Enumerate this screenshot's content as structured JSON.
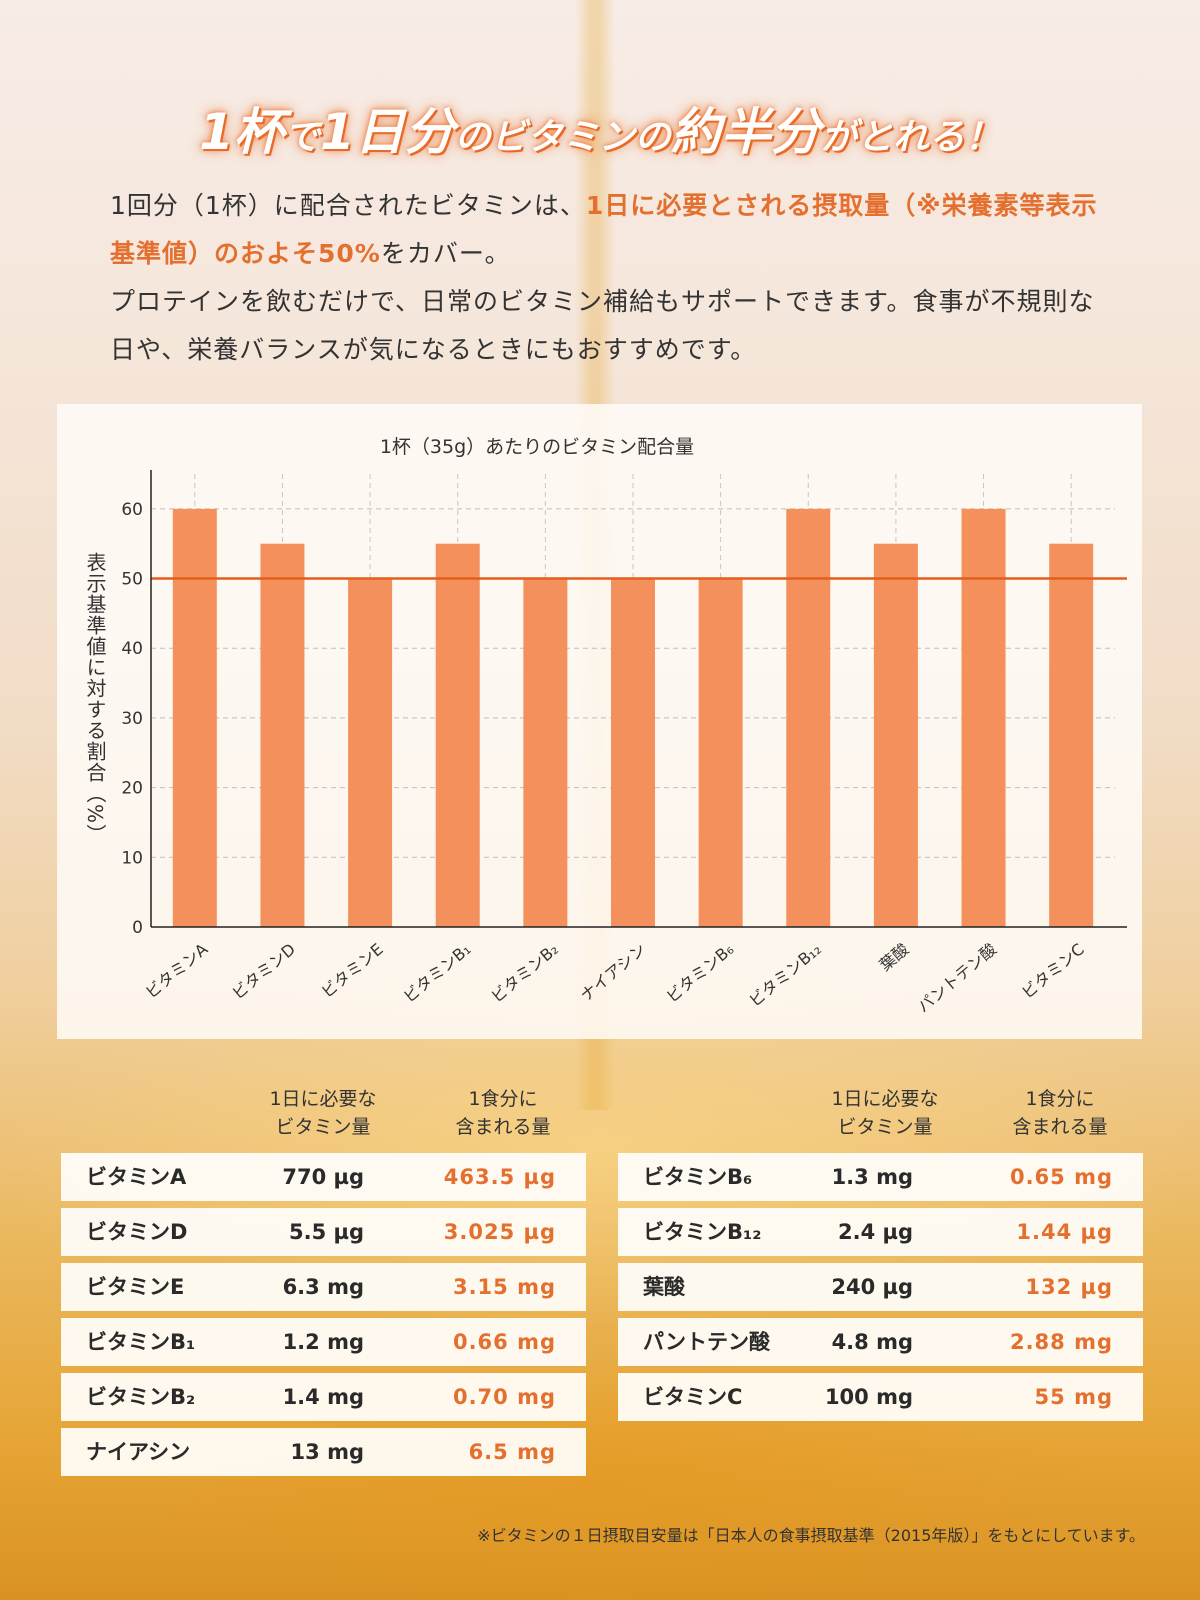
{
  "headline": {
    "p1": "1杯",
    "p2": "で",
    "p3": "1日分",
    "p4": "のビタミンの",
    "p5": "約半分",
    "p6": "がとれる！"
  },
  "intro": {
    "t1": "1回分（1杯）に配合されたビタミンは、",
    "t2": "1日に必要とされる摂取量（※栄養素等表示基準値）のおよそ50%",
    "t3": "をカバー。",
    "t4": "プロテインを飲むだけで、日常のビタミン補給もサポートできます。食事が不規則な日や、栄養バランスが気になるときにもおすすめです。"
  },
  "colors": {
    "bar": "#f4905c",
    "reference_line": "#e35d1c",
    "accent": "#e3702f"
  },
  "chart_data": {
    "type": "bar",
    "title": "1杯（35g）あたりのビタミン配合量",
    "ylabel": "表示基準値に対する割合（%）",
    "xlabel": "",
    "categories": [
      "ビタミンA",
      "ビタミンD",
      "ビタミンE",
      "ビタミンB₁",
      "ビタミンB₂",
      "ナイアシン",
      "ビタミンB₆",
      "ビタミンB₁₂",
      "葉酸",
      "パントテン酸",
      "ビタミンC"
    ],
    "values": [
      60,
      55,
      50,
      55,
      50,
      50,
      50,
      60,
      55,
      60,
      55
    ],
    "ylim": [
      0,
      65
    ],
    "yticks": [
      0,
      10,
      20,
      30,
      40,
      50,
      60
    ],
    "reference_line": 50,
    "grid": true
  },
  "table": {
    "headers": [
      {
        "req": "1日に必要な\nビタミン量",
        "amt": "1食分に\n含まれる量"
      },
      {
        "req": "1日に必要な\nビタミン量",
        "amt": "1食分に\n含まれる量"
      }
    ],
    "left": [
      {
        "name": "ビタミンA",
        "req": "770 µg",
        "amt": "463.5 µg"
      },
      {
        "name": "ビタミンD",
        "req": "5.5 µg",
        "amt": "3.025 µg"
      },
      {
        "name": "ビタミンE",
        "req": "6.3 mg",
        "amt": "3.15 mg"
      },
      {
        "name": "ビタミンB₁",
        "req": "1.2 mg",
        "amt": "0.66 mg"
      },
      {
        "name": "ビタミンB₂",
        "req": "1.4 mg",
        "amt": "0.70 mg"
      },
      {
        "name": "ナイアシン",
        "req": "13 mg",
        "amt": "6.5 mg"
      }
    ],
    "right": [
      {
        "name": "ビタミンB₆",
        "req": "1.3 mg",
        "amt": "0.65 mg"
      },
      {
        "name": "ビタミンB₁₂",
        "req": "2.4 µg",
        "amt": "1.44 µg"
      },
      {
        "name": "葉酸",
        "req": "240 µg",
        "amt": "132 µg"
      },
      {
        "name": "パントテン酸",
        "req": "4.8 mg",
        "amt": "2.88 mg"
      },
      {
        "name": "ビタミンC",
        "req": "100 mg",
        "amt": "55 mg"
      }
    ]
  },
  "footnote": "※ビタミンの１日摂取目安量は「日本人の食事摂取基準（2015年版）」をもとにしています。"
}
